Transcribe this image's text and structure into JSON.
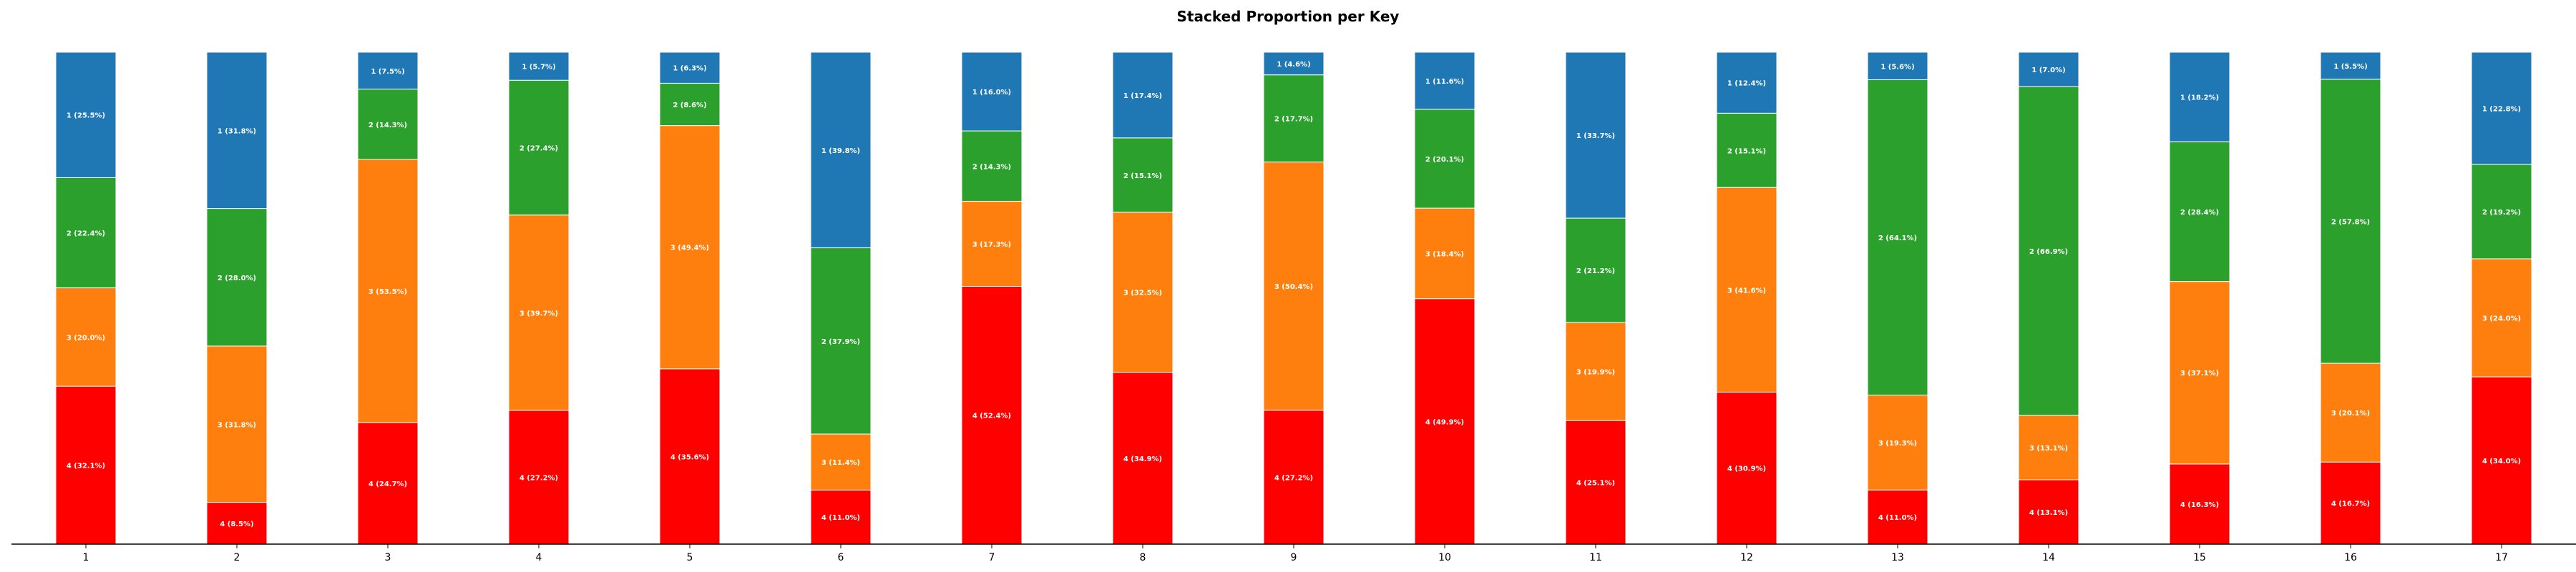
{
  "chart_data": {
    "type": "bar",
    "stacked": true,
    "title": "Stacked Proportion per Key",
    "xlabel": "",
    "ylabel": "",
    "ylim": [
      0,
      100
    ],
    "grid": false,
    "categories": [
      "1",
      "2",
      "3",
      "4",
      "5",
      "6",
      "7",
      "8",
      "9",
      "10",
      "11",
      "12",
      "13",
      "14",
      "15",
      "16",
      "17"
    ],
    "series": [
      {
        "name": "4",
        "color": "#ff0000",
        "values": [
          32.1,
          8.5,
          24.7,
          27.2,
          35.6,
          11.0,
          52.4,
          34.9,
          27.2,
          49.9,
          25.1,
          30.9,
          11.0,
          13.1,
          16.3,
          16.7,
          34.0
        ]
      },
      {
        "name": "3",
        "color": "#ff7f0e",
        "values": [
          20.0,
          31.8,
          53.5,
          39.7,
          49.4,
          11.4,
          17.3,
          32.5,
          50.4,
          18.4,
          19.9,
          41.6,
          19.3,
          13.1,
          37.1,
          20.1,
          24.0
        ]
      },
      {
        "name": "2",
        "color": "#2ca02c",
        "values": [
          22.4,
          28.0,
          14.3,
          27.4,
          8.6,
          37.9,
          14.3,
          15.1,
          17.7,
          20.1,
          21.2,
          15.1,
          64.1,
          66.9,
          28.4,
          57.8,
          19.2
        ]
      },
      {
        "name": "1",
        "color": "#1f77b4",
        "values": [
          25.5,
          31.8,
          7.5,
          5.7,
          6.3,
          39.8,
          16.0,
          17.4,
          4.6,
          11.6,
          33.7,
          12.4,
          5.6,
          7.0,
          18.2,
          5.5,
          22.8
        ]
      }
    ]
  }
}
